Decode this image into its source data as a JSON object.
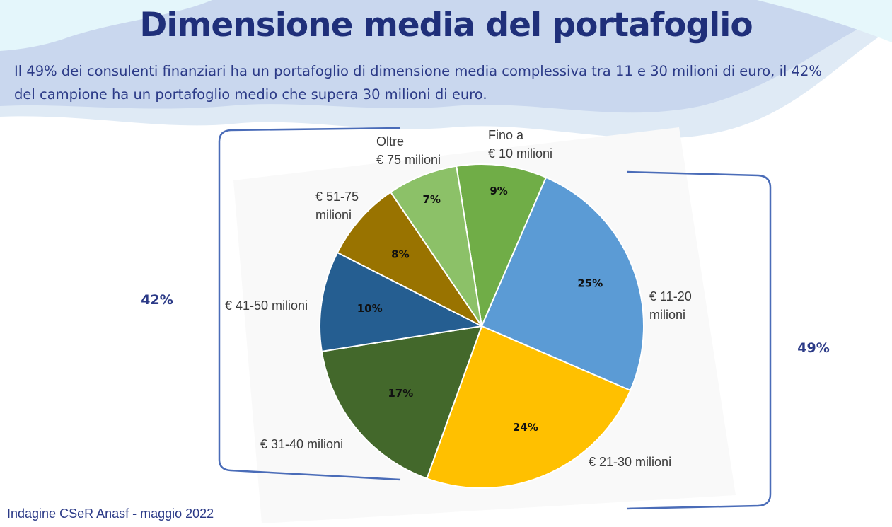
{
  "title": "Dimensione media del portafoglio",
  "subtitle_line1": "Il 49% dei consulenti finanziari ha un portafoglio di dimensione media complessiva tra 11 e 30 milioni di euro, il 42%",
  "subtitle_line2": "del campione ha un portafoglio medio che supera 30 milioni di euro.",
  "source": "Indagine CSeR Anasf - maggio 2022",
  "chart_data": {
    "type": "pie",
    "title": "",
    "slices": [
      {
        "label_lines": [
          "Fino a",
          "€ 10 milioni"
        ],
        "value": 9,
        "value_label": "9%",
        "color": "#70ad47"
      },
      {
        "label_lines": [
          "€ 11-20",
          "milioni"
        ],
        "value": 25,
        "value_label": "25%",
        "color": "#5b9bd5"
      },
      {
        "label_lines": [
          "€ 21-30 milioni"
        ],
        "value": 24,
        "value_label": "24%",
        "color": "#ffc000"
      },
      {
        "label_lines": [
          "€ 31-40 milioni"
        ],
        "value": 17,
        "value_label": "17%",
        "color": "#43682b"
      },
      {
        "label_lines": [
          "€ 41-50 milioni"
        ],
        "value": 10,
        "value_label": "10%",
        "color": "#255e91"
      },
      {
        "label_lines": [
          "€ 51-75",
          "milioni"
        ],
        "value": 8,
        "value_label": "8%",
        "color": "#997300"
      },
      {
        "label_lines": [
          "Oltre",
          "€ 75 milioni"
        ],
        "value": 7,
        "value_label": "7%",
        "color": "#8cc168"
      }
    ],
    "groups": [
      {
        "label": "42%",
        "side": "left",
        "slices": [
          "€ 31-40 milioni",
          "€ 41-50 milioni",
          "€ 51-75 milioni",
          "Oltre € 75 milioni"
        ]
      },
      {
        "label": "49%",
        "side": "right",
        "slices": [
          "€ 11-20 milioni",
          "€ 21-30 milioni"
        ]
      }
    ],
    "legend": "none"
  }
}
